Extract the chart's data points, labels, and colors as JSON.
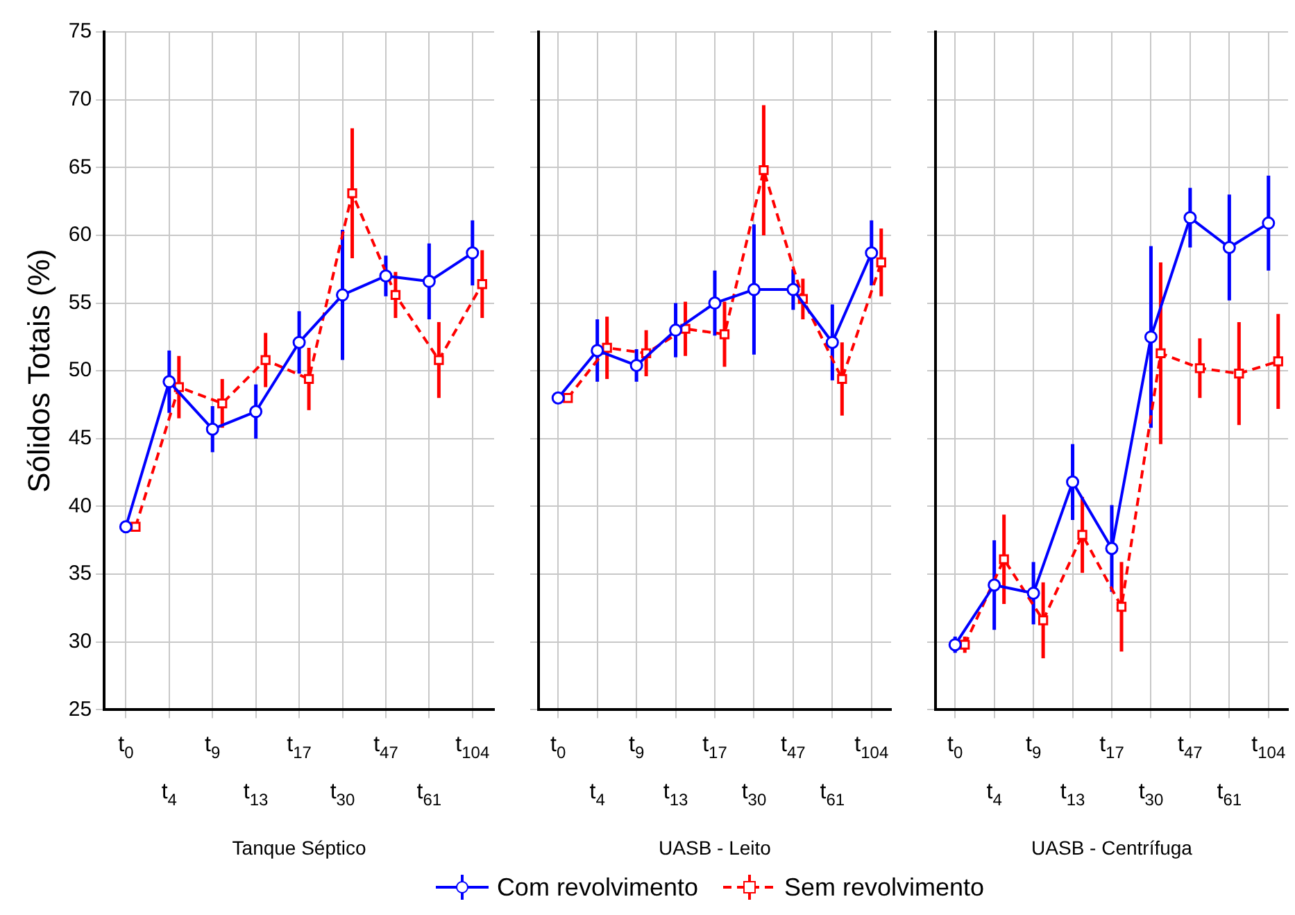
{
  "chart_data": [
    {
      "type": "line",
      "xlabel": "Tanque Séptico",
      "ylabel": "Sólidos Totais (%)",
      "categories": [
        "t$_{0}$",
        "t$_{4}$",
        "t$_{9}$",
        "t$_{13}$",
        "t$_{17}$",
        "t$_{30}$",
        "t$_{47}$",
        "t$_{61}$",
        "t$_{104}$"
      ],
      "ylim": [
        25,
        75
      ],
      "yticks": [
        25,
        30,
        35,
        40,
        45,
        50,
        55,
        60,
        65,
        70,
        75
      ],
      "grid": true,
      "legend": "bottom",
      "series": [
        {
          "name": "Com revolvimento",
          "color": "#0000ff",
          "marker": "circle",
          "line_style": "solid",
          "values": [
            38.5,
            49.2,
            45.7,
            47.0,
            52.1,
            55.6,
            57.0,
            56.6,
            58.7
          ],
          "errors": [
            null,
            2.3,
            1.7,
            2.0,
            2.3,
            4.8,
            1.5,
            2.8,
            2.4
          ]
        },
        {
          "name": "Sem revolvimento",
          "color": "#ff0000",
          "marker": "square",
          "line_style": "dashed",
          "values": [
            38.5,
            48.8,
            47.6,
            50.8,
            49.4,
            63.1,
            55.6,
            50.8,
            56.4
          ],
          "errors": [
            null,
            2.3,
            1.8,
            2.0,
            2.3,
            4.8,
            1.7,
            2.8,
            2.5
          ]
        }
      ]
    },
    {
      "type": "line",
      "xlabel": "UASB - Leito",
      "categories": [
        "t$_{0}$",
        "t$_{4}$",
        "t$_{9}$",
        "t$_{13}$",
        "t$_{17}$",
        "t$_{30}$",
        "t$_{47}$",
        "t$_{61}$",
        "t$_{104}$"
      ],
      "ylim": [
        25,
        75
      ],
      "yticks": [
        25,
        30,
        35,
        40,
        45,
        50,
        55,
        60,
        65,
        70,
        75
      ],
      "grid": true,
      "tick_labels": "x",
      "series": [
        {
          "color": "#0000ff",
          "marker": "circle",
          "line_style": "solid",
          "values": [
            48.0,
            51.5,
            50.4,
            53.0,
            55.0,
            56.0,
            56.0,
            52.1,
            58.7
          ],
          "errors": [
            null,
            2.3,
            1.2,
            2.0,
            2.4,
            4.8,
            1.5,
            2.8,
            2.4
          ]
        },
        {
          "color": "#ff0000",
          "marker": "square",
          "line_style": "dashed",
          "values": [
            48.0,
            51.7,
            51.3,
            53.1,
            52.7,
            64.8,
            55.3,
            49.4,
            58.0
          ],
          "errors": [
            null,
            2.3,
            1.7,
            2.0,
            2.4,
            4.8,
            1.5,
            2.7,
            2.5
          ]
        }
      ]
    },
    {
      "type": "line",
      "xlabel": "UASB - Centrífuga",
      "categories": [
        "t$_{0}$",
        "t$_{4}$",
        "t$_{9}$",
        "t$_{13}$",
        "t$_{17}$",
        "t$_{30}$",
        "t$_{47}$",
        "t$_{61}$",
        "t$_{104}$"
      ],
      "ylim": [
        25,
        75
      ],
      "yticks": [
        25,
        30,
        35,
        40,
        45,
        50,
        55,
        60,
        65,
        70,
        75
      ],
      "grid": true,
      "tick_labels": "x",
      "series": [
        {
          "color": "#0000ff",
          "marker": "circle",
          "line_style": "solid",
          "values": [
            29.8,
            34.2,
            33.6,
            41.8,
            36.9,
            52.5,
            61.3,
            59.1,
            60.9
          ],
          "errors": [
            0.6,
            3.3,
            2.3,
            2.8,
            3.2,
            6.7,
            2.2,
            3.9,
            3.5
          ]
        },
        {
          "color": "#ff0000",
          "marker": "square",
          "line_style": "dashed",
          "values": [
            29.8,
            36.1,
            31.6,
            37.9,
            32.6,
            51.3,
            50.2,
            49.8,
            50.7
          ],
          "errors": [
            0.6,
            3.3,
            2.8,
            2.8,
            3.3,
            6.7,
            2.2,
            3.8,
            3.5
          ]
        }
      ]
    }
  ]
}
